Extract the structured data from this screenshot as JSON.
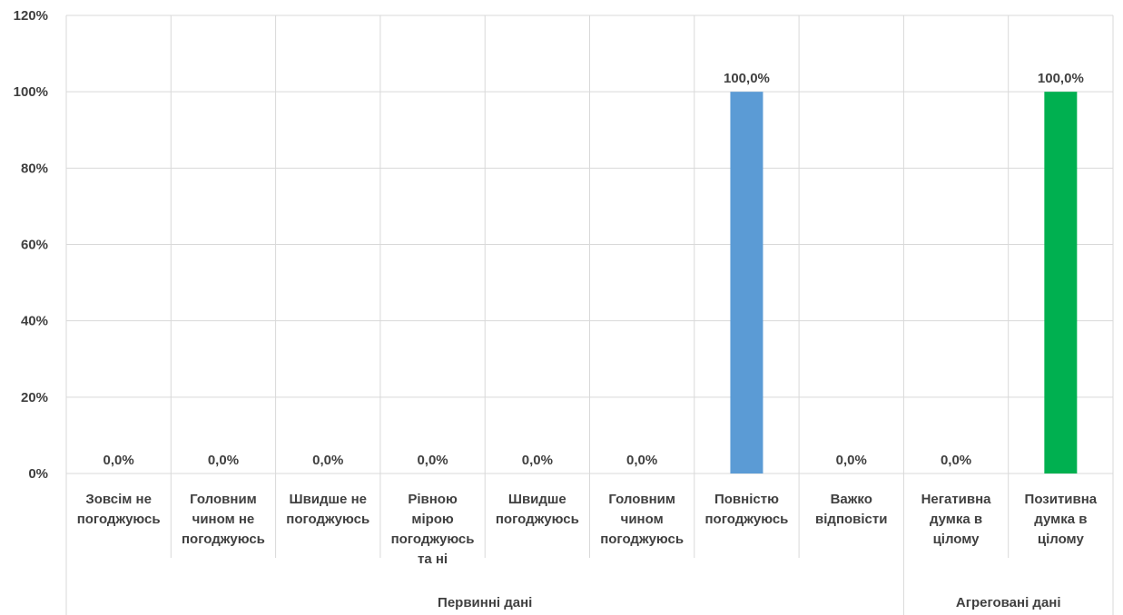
{
  "chart_data": {
    "type": "bar",
    "title": "",
    "xlabel": "",
    "ylabel": "",
    "ylim": [
      0,
      120
    ],
    "yticks": [
      0,
      20,
      40,
      60,
      80,
      100,
      120
    ],
    "ytick_labels": [
      "0%",
      "20%",
      "40%",
      "60%",
      "80%",
      "100%",
      "120%"
    ],
    "grid": true,
    "legend": "none",
    "categories": [
      [
        "Зовсім не",
        "погоджуюсь"
      ],
      [
        "Головним",
        "чином не",
        "погоджуюсь"
      ],
      [
        "Швидше не",
        "погоджуюсь"
      ],
      [
        "Рівною",
        "мірою",
        "погоджуюсь",
        "та ні"
      ],
      [
        "Швидше",
        "погоджуюсь"
      ],
      [
        "Головним",
        "чином",
        "погоджуюсь"
      ],
      [
        "Повністю",
        "погоджуюсь"
      ],
      [
        "Важко",
        "відповісти"
      ],
      [
        "Негативна",
        "думка в",
        "цілому"
      ],
      [
        "Позитивна",
        "думка в",
        "цілому"
      ]
    ],
    "values": [
      0,
      0,
      0,
      0,
      0,
      0,
      100,
      0,
      0,
      100
    ],
    "data_labels": [
      "0,0%",
      "0,0%",
      "0,0%",
      "0,0%",
      "0,0%",
      "0,0%",
      "100,0%",
      "0,0%",
      "0,0%",
      "100,0%"
    ],
    "bar_colors": [
      "#5b9bd5",
      "#5b9bd5",
      "#5b9bd5",
      "#5b9bd5",
      "#5b9bd5",
      "#5b9bd5",
      "#5b9bd5",
      "#5b9bd5",
      "#00b050",
      "#00b050"
    ],
    "groups": [
      {
        "label": "Первинні дані",
        "start": 0,
        "end": 7
      },
      {
        "label": "Агреговані дані",
        "start": 8,
        "end": 9
      }
    ]
  }
}
